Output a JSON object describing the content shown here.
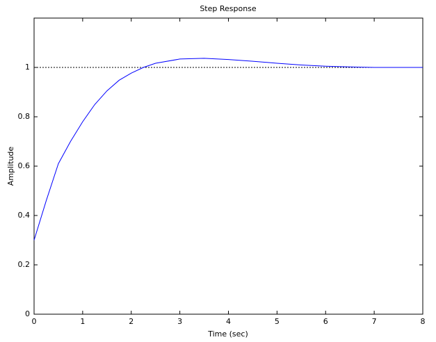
{
  "chart_data": {
    "type": "line",
    "title": "Step Response",
    "x_label": "Time (sec)",
    "y_label": "Amplitude",
    "x": [
      0,
      0.25,
      0.5,
      0.75,
      1,
      1.25,
      1.5,
      1.75,
      2,
      2.25,
      2.5,
      3,
      3.5,
      4,
      4.5,
      5,
      5.5,
      6,
      6.5,
      7,
      7.5,
      8
    ],
    "series": [
      {
        "color": "#0000ff",
        "values": [
          0.3,
          0.46,
          0.61,
          0.7,
          0.78,
          0.85,
          0.905,
          0.948,
          0.977,
          1.0,
          1.017,
          1.034,
          1.037,
          1.032,
          1.025,
          1.017,
          1.01,
          1.005,
          1.002,
          1.0,
          1.0,
          1.0
        ]
      }
    ],
    "reference": 1,
    "xlim": [
      0,
      8
    ],
    "xticks": [
      0,
      1,
      2,
      3,
      4,
      5,
      6,
      7,
      8
    ],
    "ylim": [
      0,
      1.2
    ],
    "yticks": [
      0,
      0.2,
      0.4,
      0.6,
      0.8,
      1
    ]
  }
}
